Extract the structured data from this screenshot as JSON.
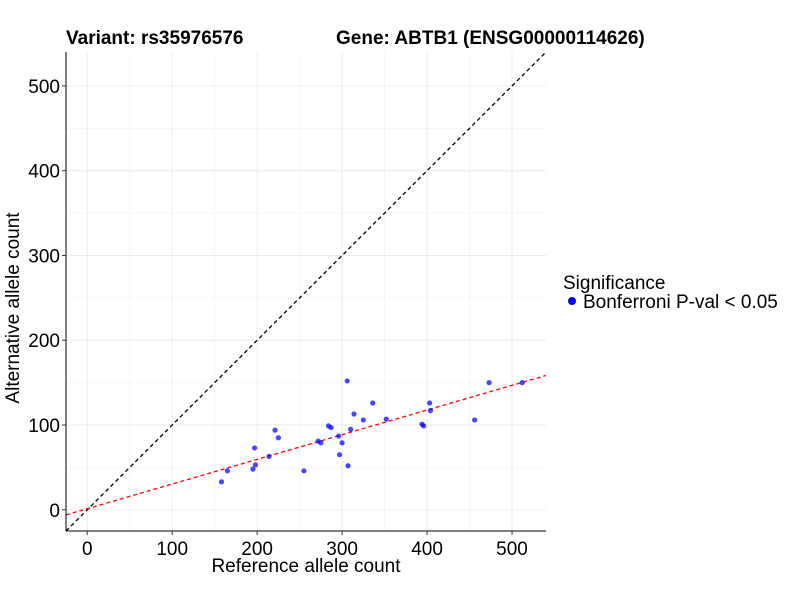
{
  "chart_data": {
    "type": "scatter",
    "title_left": "Variant: rs35976576",
    "title_right": "Gene: ABTB1 (ENSG00000114626)",
    "xlabel": "Reference allele count",
    "ylabel": "Alternative allele count",
    "xlim": [
      -25,
      540
    ],
    "ylim": [
      -25,
      540
    ],
    "xticks": [
      0,
      100,
      200,
      300,
      400,
      500
    ],
    "yticks": [
      0,
      100,
      200,
      300,
      400,
      500
    ],
    "grid": true,
    "legend": {
      "position": "right",
      "title": "Significance",
      "entries": [
        {
          "label": "Bonferroni P-val < 0.05",
          "color": "#0000ff"
        }
      ]
    },
    "reference_line": {
      "slope": 1,
      "intercept": 0,
      "color": "#000000",
      "style": "dashed"
    },
    "fit_line": {
      "slope": 0.291,
      "intercept": 1.3,
      "color": "#ff0000",
      "style": "dashed"
    },
    "series": [
      {
        "name": "Bonferroni P-val < 0.05",
        "color": "#0000ff",
        "points": [
          [
            158,
            33
          ],
          [
            165,
            46
          ],
          [
            195,
            48
          ],
          [
            197,
            73
          ],
          [
            198,
            53
          ],
          [
            214,
            63
          ],
          [
            221,
            94
          ],
          [
            225,
            85
          ],
          [
            255,
            46
          ],
          [
            272,
            81
          ],
          [
            275,
            79
          ],
          [
            284,
            99
          ],
          [
            287,
            97
          ],
          [
            296,
            87
          ],
          [
            297,
            65
          ],
          [
            300,
            79
          ],
          [
            306,
            152
          ],
          [
            307,
            52
          ],
          [
            310,
            95
          ],
          [
            314,
            113
          ],
          [
            325,
            106
          ],
          [
            336,
            126
          ],
          [
            352,
            107
          ],
          [
            394,
            101
          ],
          [
            396,
            99
          ],
          [
            403,
            126
          ],
          [
            404,
            117
          ],
          [
            456,
            106
          ],
          [
            473,
            150
          ],
          [
            512,
            150
          ]
        ]
      }
    ]
  }
}
